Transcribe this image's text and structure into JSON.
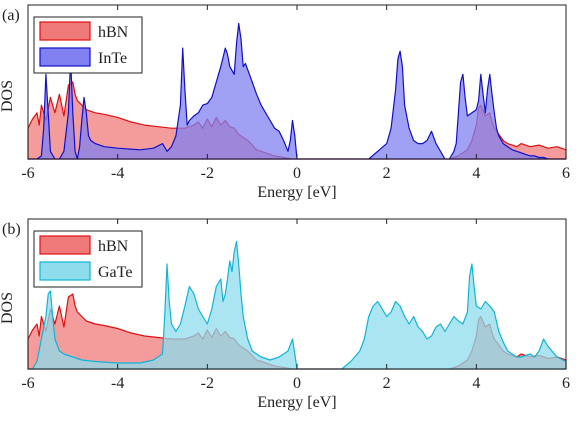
{
  "chart_data": [
    {
      "type": "area",
      "panel_label": "(a)",
      "xlabel": "Energy [eV]",
      "ylabel": "DOS",
      "xlim": [
        -6,
        6
      ],
      "ylim": [
        0,
        1
      ],
      "x_ticks": [
        -6,
        -4,
        -2,
        0,
        2,
        4,
        6
      ],
      "x_tick_labels": [
        "-6",
        "-4",
        "-2",
        "0",
        "2",
        "4",
        "6"
      ],
      "grid": false,
      "legend_position": "top-left",
      "series": [
        {
          "name": "hBN",
          "fill": "#f07a7a",
          "stroke": "#e01010",
          "x": [
            -6.0,
            -5.9,
            -5.8,
            -5.75,
            -5.7,
            -5.6,
            -5.5,
            -5.4,
            -5.3,
            -5.2,
            -5.1,
            -5.0,
            -4.95,
            -4.9,
            -4.8,
            -4.7,
            -4.6,
            -4.5,
            -4.3,
            -4.0,
            -3.7,
            -3.4,
            -3.1,
            -2.8,
            -2.5,
            -2.3,
            -2.2,
            -2.1,
            -2.0,
            -1.9,
            -1.8,
            -1.7,
            -1.6,
            -1.5,
            -1.4,
            -1.3,
            -1.2,
            -1.1,
            -1.0,
            -0.9,
            -0.8,
            -0.7,
            -0.6,
            -0.5,
            -0.3,
            -0.1,
            0.0,
            0.5,
            1.0,
            1.5,
            2.0,
            2.5,
            3.0,
            3.4,
            3.6,
            3.8,
            3.9,
            4.0,
            4.05,
            4.1,
            4.2,
            4.3,
            4.35,
            4.4,
            4.5,
            4.6,
            4.7,
            4.8,
            4.9,
            5.0,
            5.2,
            5.4,
            5.6,
            5.8,
            6.0
          ],
          "y": [
            0.2,
            0.26,
            0.3,
            0.22,
            0.35,
            0.25,
            0.4,
            0.3,
            0.42,
            0.28,
            0.48,
            0.5,
            0.42,
            0.38,
            0.35,
            0.32,
            0.31,
            0.3,
            0.29,
            0.27,
            0.24,
            0.22,
            0.21,
            0.2,
            0.2,
            0.22,
            0.24,
            0.2,
            0.26,
            0.21,
            0.27,
            0.22,
            0.25,
            0.21,
            0.2,
            0.16,
            0.14,
            0.12,
            0.09,
            0.06,
            0.05,
            0.04,
            0.03,
            0.02,
            0.01,
            0.0,
            0.0,
            0.0,
            0.0,
            0.0,
            0.0,
            0.0,
            0.0,
            0.0,
            0.02,
            0.06,
            0.12,
            0.22,
            0.33,
            0.35,
            0.28,
            0.3,
            0.24,
            0.2,
            0.16,
            0.12,
            0.1,
            0.09,
            0.08,
            0.1,
            0.08,
            0.09,
            0.07,
            0.08,
            0.06
          ]
        },
        {
          "name": "InTe",
          "fill": "#8080f0",
          "stroke": "#1010c8",
          "x": [
            -6.0,
            -5.8,
            -5.7,
            -5.65,
            -5.6,
            -5.55,
            -5.5,
            -5.4,
            -5.3,
            -5.2,
            -5.1,
            -5.05,
            -5.0,
            -4.95,
            -4.9,
            -4.85,
            -4.8,
            -4.75,
            -4.7,
            -4.65,
            -4.6,
            -4.5,
            -4.3,
            -4.0,
            -3.5,
            -3.2,
            -3.0,
            -2.9,
            -2.8,
            -2.7,
            -2.6,
            -2.55,
            -2.5,
            -2.45,
            -2.4,
            -2.3,
            -2.2,
            -2.1,
            -2.0,
            -1.9,
            -1.8,
            -1.75,
            -1.7,
            -1.6,
            -1.55,
            -1.5,
            -1.4,
            -1.35,
            -1.3,
            -1.25,
            -1.2,
            -1.15,
            -1.1,
            -1.0,
            -0.9,
            -0.8,
            -0.7,
            -0.6,
            -0.5,
            -0.4,
            -0.3,
            -0.2,
            -0.15,
            -0.1,
            -0.05,
            0.0,
            0.05,
            0.5,
            1.0,
            1.5,
            1.6,
            1.8,
            2.0,
            2.1,
            2.2,
            2.25,
            2.3,
            2.35,
            2.4,
            2.5,
            2.6,
            2.7,
            2.8,
            2.9,
            3.0,
            3.1,
            3.3,
            3.4,
            3.5,
            3.55,
            3.6,
            3.65,
            3.7,
            3.75,
            3.8,
            3.9,
            4.0,
            4.05,
            4.1,
            4.15,
            4.2,
            4.25,
            4.3,
            4.35,
            4.4,
            4.45,
            4.5,
            4.6,
            4.7,
            4.8,
            4.9,
            5.0,
            5.1,
            5.2,
            5.3,
            5.4,
            5.5,
            5.6,
            5.8,
            6.0
          ],
          "y": [
            0.0,
            0.0,
            0.02,
            0.2,
            0.55,
            0.3,
            0.05,
            0.0,
            0.0,
            0.05,
            0.3,
            0.65,
            0.3,
            0.05,
            0.0,
            0.08,
            0.25,
            0.4,
            0.3,
            0.15,
            0.12,
            0.1,
            0.08,
            0.07,
            0.06,
            0.07,
            0.1,
            0.05,
            0.08,
            0.15,
            0.35,
            0.72,
            0.45,
            0.22,
            0.25,
            0.28,
            0.3,
            0.35,
            0.36,
            0.4,
            0.5,
            0.55,
            0.6,
            0.72,
            0.68,
            0.6,
            0.55,
            0.75,
            0.88,
            0.78,
            0.6,
            0.62,
            0.58,
            0.5,
            0.42,
            0.35,
            0.3,
            0.25,
            0.2,
            0.18,
            0.12,
            0.05,
            0.12,
            0.25,
            0.15,
            0.0,
            0.0,
            0.0,
            0.0,
            0.0,
            0.0,
            0.05,
            0.1,
            0.2,
            0.45,
            0.65,
            0.7,
            0.6,
            0.35,
            0.2,
            0.12,
            0.1,
            0.1,
            0.12,
            0.18,
            0.1,
            0.0,
            0.0,
            0.05,
            0.1,
            0.3,
            0.5,
            0.55,
            0.4,
            0.28,
            0.3,
            0.32,
            0.38,
            0.55,
            0.42,
            0.3,
            0.45,
            0.55,
            0.42,
            0.3,
            0.2,
            0.15,
            0.1,
            0.08,
            0.06,
            0.05,
            0.04,
            0.03,
            0.02,
            0.02,
            0.01,
            0.01,
            0.0,
            0.0,
            0.0
          ]
        }
      ]
    },
    {
      "type": "area",
      "panel_label": "(b)",
      "xlabel": "Energy [eV]",
      "ylabel": "DOS",
      "xlim": [
        -6,
        6
      ],
      "ylim": [
        0,
        1
      ],
      "x_ticks": [
        -6,
        -4,
        -2,
        0,
        2,
        4,
        6
      ],
      "x_tick_labels": [
        "-6",
        "-4",
        "-2",
        "0",
        "2",
        "4",
        "6"
      ],
      "grid": false,
      "legend_position": "top-left",
      "series": [
        {
          "name": "hBN",
          "fill": "#f07a7a",
          "stroke": "#e01010",
          "x": [
            -6.0,
            -5.9,
            -5.8,
            -5.75,
            -5.7,
            -5.6,
            -5.5,
            -5.4,
            -5.3,
            -5.2,
            -5.1,
            -5.0,
            -4.95,
            -4.9,
            -4.8,
            -4.7,
            -4.6,
            -4.5,
            -4.3,
            -4.0,
            -3.7,
            -3.4,
            -3.1,
            -2.8,
            -2.5,
            -2.3,
            -2.2,
            -2.1,
            -2.0,
            -1.9,
            -1.8,
            -1.7,
            -1.6,
            -1.5,
            -1.4,
            -1.3,
            -1.2,
            -1.1,
            -1.0,
            -0.9,
            -0.8,
            -0.7,
            -0.6,
            -0.5,
            -0.3,
            -0.1,
            0.0,
            0.5,
            1.0,
            1.5,
            2.0,
            2.5,
            3.0,
            3.4,
            3.6,
            3.8,
            3.9,
            4.0,
            4.05,
            4.1,
            4.2,
            4.3,
            4.35,
            4.4,
            4.5,
            4.6,
            4.7,
            4.8,
            4.9,
            5.0,
            5.2,
            5.4,
            5.6,
            5.8,
            6.0
          ],
          "y": [
            0.2,
            0.26,
            0.3,
            0.22,
            0.35,
            0.25,
            0.4,
            0.3,
            0.42,
            0.28,
            0.48,
            0.5,
            0.42,
            0.38,
            0.35,
            0.32,
            0.31,
            0.3,
            0.29,
            0.27,
            0.24,
            0.22,
            0.21,
            0.2,
            0.2,
            0.22,
            0.24,
            0.2,
            0.26,
            0.21,
            0.27,
            0.22,
            0.25,
            0.21,
            0.2,
            0.16,
            0.14,
            0.12,
            0.09,
            0.06,
            0.05,
            0.04,
            0.03,
            0.02,
            0.01,
            0.0,
            0.0,
            0.0,
            0.0,
            0.0,
            0.0,
            0.0,
            0.0,
            0.0,
            0.02,
            0.06,
            0.12,
            0.22,
            0.33,
            0.35,
            0.28,
            0.3,
            0.24,
            0.2,
            0.16,
            0.12,
            0.1,
            0.09,
            0.08,
            0.1,
            0.08,
            0.09,
            0.07,
            0.08,
            0.06
          ]
        },
        {
          "name": "GaTe",
          "fill": "#8edcec",
          "stroke": "#10b4d8",
          "x": [
            -6.0,
            -5.9,
            -5.8,
            -5.7,
            -5.6,
            -5.55,
            -5.5,
            -5.45,
            -5.4,
            -5.3,
            -5.2,
            -5.0,
            -4.8,
            -4.5,
            -4.0,
            -3.5,
            -3.2,
            -3.0,
            -2.95,
            -2.9,
            -2.85,
            -2.8,
            -2.7,
            -2.6,
            -2.5,
            -2.4,
            -2.3,
            -2.2,
            -2.1,
            -2.0,
            -1.9,
            -1.8,
            -1.7,
            -1.65,
            -1.6,
            -1.55,
            -1.5,
            -1.45,
            -1.4,
            -1.35,
            -1.3,
            -1.25,
            -1.2,
            -1.1,
            -1.0,
            -0.9,
            -0.8,
            -0.6,
            -0.4,
            -0.2,
            -0.1,
            -0.05,
            0.0,
            0.05,
            0.5,
            1.0,
            1.2,
            1.4,
            1.5,
            1.6,
            1.7,
            1.8,
            1.9,
            2.0,
            2.1,
            2.2,
            2.3,
            2.4,
            2.5,
            2.6,
            2.7,
            2.8,
            2.9,
            3.0,
            3.1,
            3.2,
            3.3,
            3.4,
            3.5,
            3.6,
            3.7,
            3.8,
            3.85,
            3.9,
            3.95,
            4.0,
            4.1,
            4.2,
            4.3,
            4.4,
            4.5,
            4.6,
            4.7,
            4.8,
            4.9,
            5.0,
            5.1,
            5.2,
            5.3,
            5.4,
            5.5,
            5.6,
            5.8,
            6.0
          ],
          "y": [
            0.0,
            0.0,
            0.05,
            0.2,
            0.35,
            0.5,
            0.52,
            0.35,
            0.2,
            0.12,
            0.1,
            0.08,
            0.06,
            0.05,
            0.04,
            0.04,
            0.06,
            0.1,
            0.35,
            0.7,
            0.45,
            0.3,
            0.25,
            0.3,
            0.42,
            0.55,
            0.5,
            0.4,
            0.35,
            0.3,
            0.4,
            0.55,
            0.6,
            0.45,
            0.5,
            0.6,
            0.72,
            0.65,
            0.78,
            0.85,
            0.7,
            0.5,
            0.35,
            0.2,
            0.12,
            0.1,
            0.08,
            0.06,
            0.08,
            0.12,
            0.2,
            0.1,
            0.0,
            0.0,
            0.0,
            0.0,
            0.05,
            0.12,
            0.2,
            0.35,
            0.42,
            0.45,
            0.4,
            0.35,
            0.38,
            0.45,
            0.42,
            0.35,
            0.3,
            0.35,
            0.28,
            0.25,
            0.2,
            0.22,
            0.28,
            0.3,
            0.25,
            0.3,
            0.35,
            0.32,
            0.3,
            0.38,
            0.62,
            0.7,
            0.55,
            0.42,
            0.4,
            0.45,
            0.42,
            0.38,
            0.25,
            0.18,
            0.12,
            0.1,
            0.08,
            0.08,
            0.09,
            0.1,
            0.08,
            0.12,
            0.2,
            0.15,
            0.08,
            0.05
          ]
        }
      ]
    }
  ]
}
